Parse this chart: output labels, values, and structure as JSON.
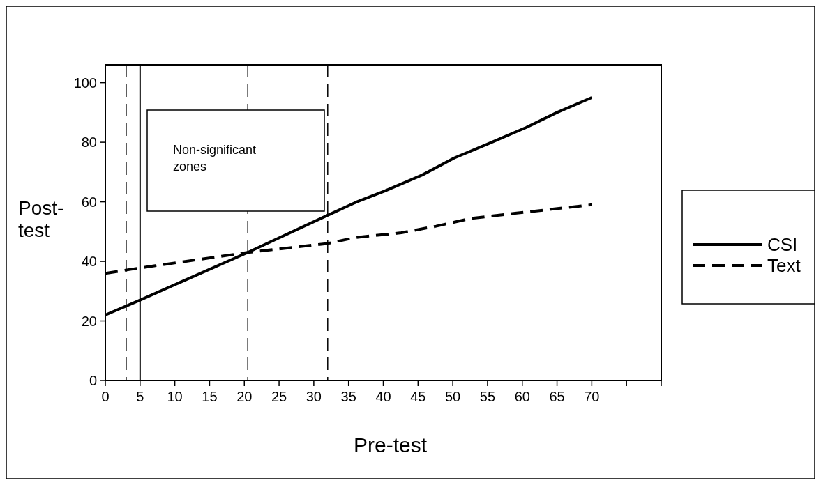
{
  "chart_data": {
    "type": "line",
    "xlabel": "Pre-test",
    "ylabel": "Post-test",
    "xlim": [
      0,
      80
    ],
    "xticks": [
      0,
      5,
      10,
      15,
      20,
      25,
      30,
      35,
      40,
      45,
      50,
      55,
      60,
      65,
      70,
      {
        "value": 75,
        "label": null
      },
      {
        "value": 80,
        "label": null
      }
    ],
    "ylim": [
      0,
      106
    ],
    "yticks": [
      0,
      20,
      40,
      60,
      80,
      100
    ],
    "legend": "right",
    "grid": false,
    "annotations": [
      "Non-significant zones"
    ],
    "ref_lines": [
      {
        "axis": "x",
        "value": 3,
        "color": "#000000",
        "line_style": "dashed"
      },
      {
        "axis": "x",
        "value": 5,
        "color": "#000000",
        "line_style": "solid"
      },
      {
        "axis": "x",
        "value": 20.5,
        "color": "#000000",
        "line_style": "dashed"
      },
      {
        "axis": "x",
        "value": 32,
        "color": "#000000",
        "line_style": "dashed"
      }
    ],
    "series": [
      {
        "name": "CSI",
        "color": "#000000",
        "line_style": "solid",
        "x": [
          0,
          5,
          20.5,
          32,
          36.2,
          40.2,
          45.6,
          50.2,
          55.2,
          60.6,
          65,
          70
        ],
        "values": [
          22,
          27,
          43,
          55.5,
          60,
          63.6,
          69,
          74.7,
          79.6,
          85,
          90,
          95
        ]
      },
      {
        "name": "Text",
        "color": "#000000",
        "line_style": "dashed",
        "x": [
          0,
          5,
          20.5,
          32,
          36,
          42.6,
          47.6,
          52.6,
          59.2,
          70
        ],
        "values": [
          36,
          37.8,
          43,
          46,
          48,
          49.6,
          51.8,
          54.4,
          56.2,
          59
        ]
      }
    ]
  }
}
